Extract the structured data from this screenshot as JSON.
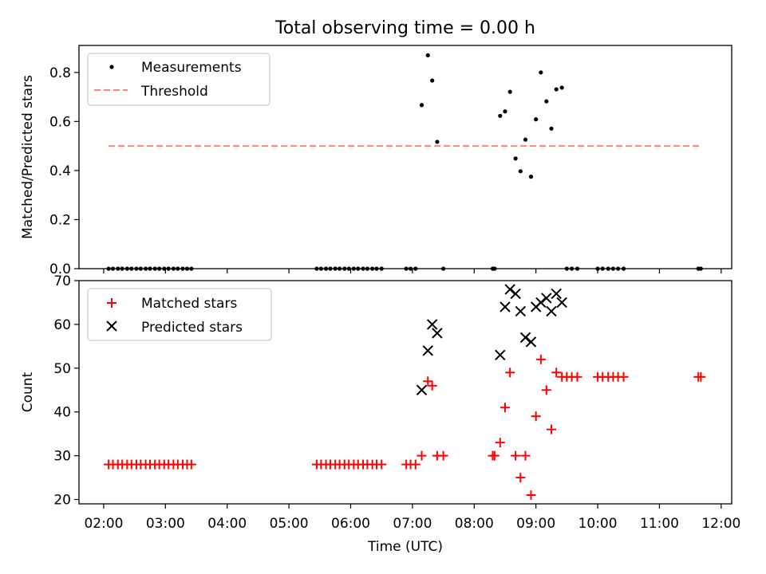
{
  "chart_data": [
    {
      "type": "scatter",
      "title": "Total observing time = 0.00 h",
      "ylabel": "Matched/Predicted stars",
      "xlabel": "",
      "xlim": [
        1.6,
        12.17
      ],
      "ylim": [
        0.0,
        0.91
      ],
      "yticks": [
        0.0,
        0.2,
        0.4,
        0.6,
        0.8
      ],
      "ytick_labels": [
        "0.0",
        "0.2",
        "0.4",
        "0.6",
        "0.8"
      ],
      "legend_position": "top-left",
      "series": [
        {
          "name": "Measurements",
          "marker": "dot",
          "color": "#000000",
          "x": [
            2.08,
            2.15,
            2.23,
            2.3,
            2.38,
            2.45,
            2.53,
            2.6,
            2.68,
            2.75,
            2.83,
            2.9,
            2.98,
            3.05,
            3.13,
            3.2,
            3.28,
            3.35,
            3.42,
            5.45,
            5.52,
            5.6,
            5.67,
            5.75,
            5.82,
            5.9,
            5.97,
            6.05,
            6.12,
            6.2,
            6.27,
            6.35,
            6.42,
            6.5,
            6.9,
            6.97,
            7.05,
            7.15,
            7.25,
            7.32,
            7.4,
            7.5,
            8.3,
            8.33,
            8.42,
            8.5,
            8.58,
            8.67,
            8.75,
            8.83,
            8.92,
            9.0,
            9.08,
            9.17,
            9.25,
            9.33,
            9.42,
            9.5,
            9.58,
            9.67,
            10.0,
            10.08,
            10.17,
            10.25,
            10.33,
            10.42,
            11.63,
            11.67
          ],
          "y": [
            0,
            0,
            0,
            0,
            0,
            0,
            0,
            0,
            0,
            0,
            0,
            0,
            0,
            0,
            0,
            0,
            0,
            0,
            0,
            0,
            0,
            0,
            0,
            0,
            0,
            0,
            0,
            0,
            0,
            0,
            0,
            0,
            0,
            0,
            0,
            0,
            0,
            0.667,
            0.87,
            0.767,
            0.517,
            0,
            0,
            0,
            0.623,
            0.641,
            0.721,
            0.449,
            0.397,
            0.526,
            0.375,
            0.609,
            0.8,
            0.682,
            0.571,
            0.731,
            0.738,
            0,
            0,
            0,
            0,
            0,
            0,
            0,
            0,
            0,
            0,
            0
          ]
        },
        {
          "name": "Threshold",
          "style": "dashed",
          "color": "#ff7f7f",
          "x": [
            2.08,
            11.67
          ],
          "y": [
            0.5,
            0.5
          ]
        }
      ]
    },
    {
      "type": "scatter",
      "title": "",
      "xlabel": "Time (UTC)",
      "ylabel": "Count",
      "xlim": [
        1.6,
        12.17
      ],
      "ylim": [
        19,
        70
      ],
      "xticks": [
        2,
        3,
        4,
        5,
        6,
        7,
        8,
        9,
        10,
        11,
        12
      ],
      "xtick_labels": [
        "02:00",
        "03:00",
        "04:00",
        "05:00",
        "06:00",
        "07:00",
        "08:00",
        "09:00",
        "10:00",
        "11:00",
        "12:00"
      ],
      "yticks": [
        20,
        30,
        40,
        50,
        60,
        70
      ],
      "ytick_labels": [
        "20",
        "30",
        "40",
        "50",
        "60",
        "70"
      ],
      "legend_position": "top-left",
      "series": [
        {
          "name": "Matched stars",
          "marker": "plus",
          "color": "#ff0000",
          "x": [
            2.08,
            2.15,
            2.23,
            2.3,
            2.38,
            2.45,
            2.53,
            2.6,
            2.68,
            2.75,
            2.83,
            2.9,
            2.98,
            3.05,
            3.13,
            3.2,
            3.28,
            3.35,
            3.42,
            5.45,
            5.52,
            5.6,
            5.67,
            5.75,
            5.82,
            5.9,
            5.97,
            6.05,
            6.12,
            6.2,
            6.27,
            6.35,
            6.42,
            6.5,
            6.9,
            6.97,
            7.05,
            7.15,
            7.25,
            7.32,
            7.4,
            7.5,
            8.3,
            8.33,
            8.42,
            8.5,
            8.58,
            8.67,
            8.75,
            8.83,
            8.92,
            9.0,
            9.08,
            9.17,
            9.25,
            9.33,
            9.42,
            9.5,
            9.58,
            9.67,
            10.0,
            10.08,
            10.17,
            10.25,
            10.33,
            10.42,
            11.63,
            11.67
          ],
          "y": [
            28,
            28,
            28,
            28,
            28,
            28,
            28,
            28,
            28,
            28,
            28,
            28,
            28,
            28,
            28,
            28,
            28,
            28,
            28,
            28,
            28,
            28,
            28,
            28,
            28,
            28,
            28,
            28,
            28,
            28,
            28,
            28,
            28,
            28,
            28,
            28,
            28,
            30,
            47,
            46,
            30,
            30,
            30,
            30,
            33,
            41,
            49,
            30,
            25,
            30,
            21,
            39,
            52,
            45,
            36,
            49,
            48,
            48,
            48,
            48,
            48,
            48,
            48,
            48,
            48,
            48,
            48,
            48
          ]
        },
        {
          "name": "Predicted stars",
          "marker": "x",
          "color": "#000000",
          "x": [
            7.15,
            7.25,
            7.32,
            7.4,
            8.42,
            8.5,
            8.58,
            8.67,
            8.75,
            8.83,
            8.92,
            9.0,
            9.08,
            9.17,
            9.25,
            9.33,
            9.42
          ],
          "y": [
            45,
            54,
            60,
            58,
            53,
            64,
            68,
            67,
            63,
            57,
            56,
            64,
            65,
            66,
            63,
            67,
            65
          ]
        }
      ]
    }
  ]
}
